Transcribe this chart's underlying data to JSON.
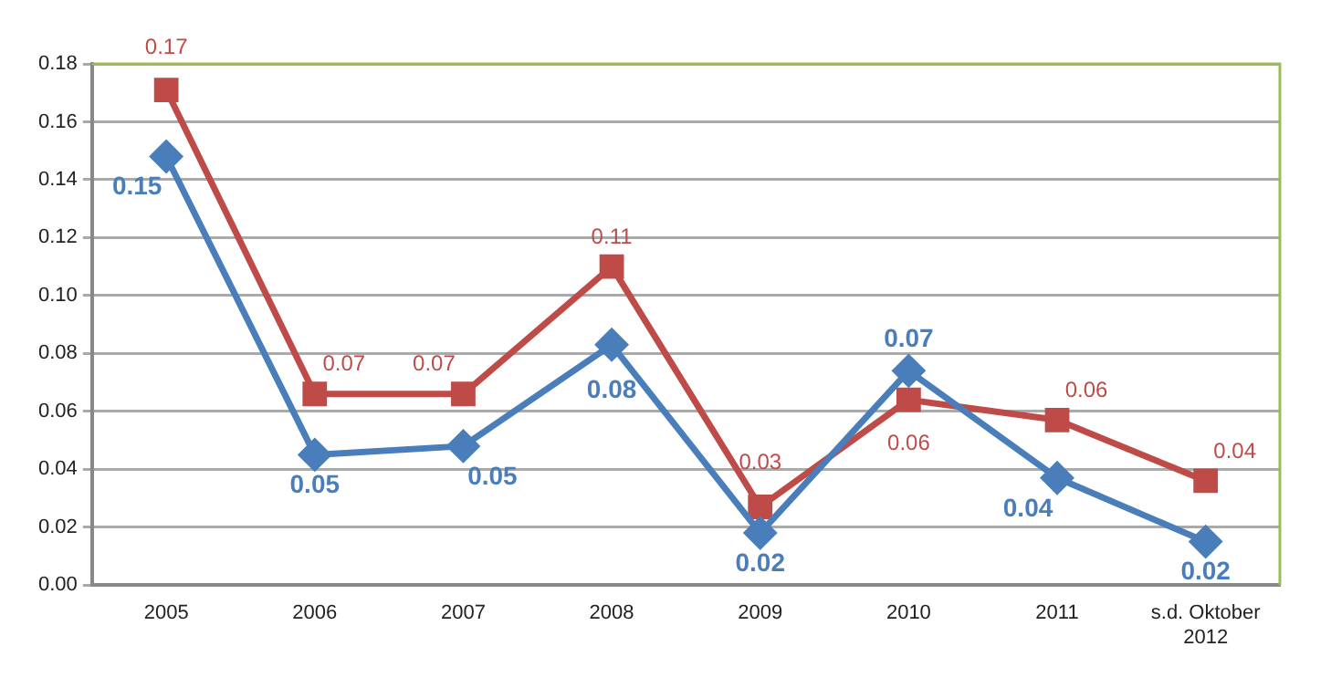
{
  "chart_data": {
    "type": "line",
    "categories": [
      "2005",
      "2006",
      "2007",
      "2008",
      "2009",
      "2010",
      "2011",
      "s.d. Oktober 2012"
    ],
    "series": [
      {
        "color": "#4a7ebb",
        "marker": "diamond",
        "values": [
          0.148,
          0.045,
          0.048,
          0.083,
          0.018,
          0.074,
          0.037,
          0.015
        ],
        "value_labels": [
          "0.15",
          "0.05",
          "0.05",
          "0.08",
          "0.02",
          "0.07",
          "0.04",
          "0.02"
        ]
      },
      {
        "color": "#be4b48",
        "marker": "square",
        "values": [
          0.171,
          0.066,
          0.066,
          0.11,
          0.027,
          0.064,
          0.057,
          0.036
        ],
        "value_labels": [
          "0.17",
          "0.07",
          "0.07",
          "0.11",
          "0.03",
          "0.06",
          "0.06",
          "0.04"
        ]
      }
    ],
    "ylim": [
      0,
      0.18
    ],
    "yticks": [
      "0.00",
      "0.02",
      "0.04",
      "0.06",
      "0.08",
      "0.10",
      "0.12",
      "0.14",
      "0.16",
      "0.18"
    ],
    "grid": "y",
    "legend": false,
    "line_style": "solid"
  }
}
